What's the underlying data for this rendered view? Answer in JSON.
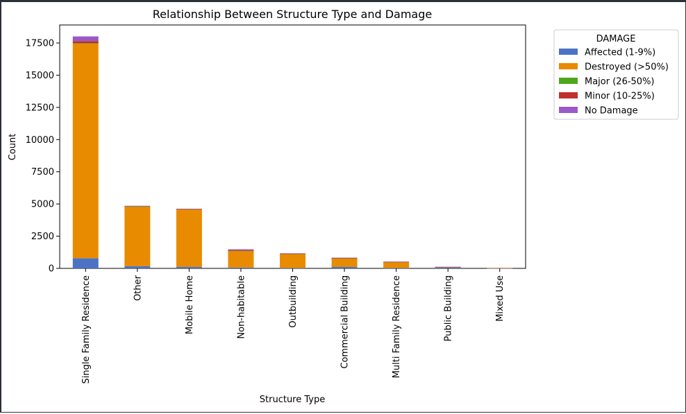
{
  "chart_data": {
    "type": "bar",
    "stacked": true,
    "title": "Relationship Between Structure Type and Damage",
    "xlabel": "Structure Type",
    "ylabel": "Count",
    "ylim": [
      0,
      18900
    ],
    "yticks": [
      0,
      2500,
      5000,
      7500,
      10000,
      12500,
      15000,
      17500
    ],
    "categories": [
      "Single Family Residence",
      "Other",
      "Mobile Home",
      "Non-habitable",
      "Outbuilding",
      "Commercial Building",
      "Multi Family Residence",
      "Public Building",
      "Mixed Use"
    ],
    "legend": {
      "title": "DAMAGE",
      "position": "outside-right"
    },
    "series": [
      {
        "name": "Affected (1-9%)",
        "color": "#4c72c4",
        "values": [
          790,
          160,
          110,
          60,
          30,
          110,
          30,
          30,
          10
        ]
      },
      {
        "name": "Destroyed (>50%)",
        "color": "#e88b00",
        "values": [
          16650,
          4630,
          4490,
          1310,
          1100,
          680,
          470,
          30,
          30
        ]
      },
      {
        "name": "Major (26-50%)",
        "color": "#4fa61a",
        "values": [
          40,
          20,
          10,
          10,
          10,
          5,
          5,
          5,
          0
        ]
      },
      {
        "name": "Minor (10-25%)",
        "color": "#c22f2f",
        "values": [
          170,
          30,
          10,
          20,
          10,
          15,
          10,
          20,
          0
        ]
      },
      {
        "name": "No Damage",
        "color": "#9a58c9",
        "values": [
          360,
          20,
          10,
          80,
          20,
          20,
          10,
          40,
          0
        ]
      }
    ]
  }
}
